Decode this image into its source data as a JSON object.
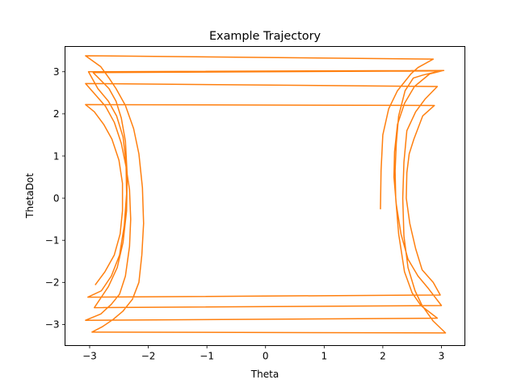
{
  "chart_data": {
    "type": "line",
    "title": "Example Trajectory",
    "xlabel": "Theta",
    "ylabel": "ThetaDot",
    "xlim": [
      -3.42,
      3.4
    ],
    "ylim": [
      -3.5,
      3.6
    ],
    "xticks": [
      -3,
      -2,
      -1,
      0,
      1,
      2,
      3
    ],
    "xtick_labels": [
      "−3",
      "−2",
      "−1",
      "0",
      "1",
      "2",
      "3"
    ],
    "yticks": [
      -3,
      -2,
      -1,
      0,
      1,
      2,
      3
    ],
    "ytick_labels": [
      "−3",
      "−2",
      "−1",
      "0",
      "1",
      "2",
      "3"
    ],
    "grid": false,
    "legend": "none",
    "series": [
      {
        "color": "#ff7f0e",
        "x": [
          1.96,
          1.97,
          2.0,
          2.1,
          2.25,
          2.48,
          2.6,
          2.86,
          -3.07,
          -2.81,
          -2.67,
          -2.55,
          -2.39,
          -2.25,
          -2.16,
          -2.1,
          -2.08,
          -2.11,
          -2.16,
          -2.27,
          -2.43,
          -2.6,
          -2.78,
          -2.96,
          3.07,
          2.86,
          2.67,
          2.55,
          2.43,
          2.36,
          2.34,
          2.36,
          2.41,
          2.56,
          2.72,
          2.93,
          -3.07,
          -2.9,
          -2.73,
          -2.58,
          -2.46,
          -2.38,
          -2.32,
          -2.3,
          -2.32,
          -2.39,
          -2.49,
          -2.63,
          -2.81,
          -3.07,
          2.93,
          2.65,
          2.5,
          2.37,
          2.27,
          2.22,
          2.21,
          2.23,
          2.27,
          2.38,
          2.52,
          2.68,
          2.98,
          -2.94,
          -2.67,
          -2.55,
          -2.46,
          -2.39,
          -2.36,
          -2.37,
          -2.43,
          -2.53,
          -2.68,
          -2.92,
          3.0,
          2.78,
          2.6,
          2.43,
          2.31,
          2.23,
          2.19,
          2.2,
          2.25,
          2.37,
          2.54,
          2.8,
          3.04,
          -3.02,
          -2.86,
          -2.68,
          -2.54,
          -2.43,
          -2.38,
          -2.37,
          -2.41,
          -2.49,
          -2.63,
          -2.8,
          -3.03,
          2.98,
          2.86,
          2.67,
          2.56,
          2.46,
          2.4,
          2.41,
          2.45,
          2.53,
          2.68,
          2.88,
          -3.07,
          -2.92,
          -2.76,
          -2.62,
          -2.5,
          -2.44,
          -2.44,
          -2.48,
          -2.58,
          -2.74,
          -2.9
        ],
        "y": [
          -0.25,
          0.65,
          1.5,
          2.12,
          2.55,
          2.95,
          3.1,
          3.3,
          3.38,
          3.12,
          2.85,
          2.6,
          2.2,
          1.65,
          1.05,
          0.25,
          -0.6,
          -1.35,
          -2.0,
          -2.4,
          -2.68,
          -2.88,
          -3.05,
          -3.18,
          -3.2,
          -2.92,
          -2.55,
          -2.2,
          -1.65,
          -0.9,
          0.0,
          0.85,
          1.6,
          2.05,
          2.35,
          2.65,
          2.72,
          2.45,
          2.18,
          1.8,
          1.3,
          0.75,
          0.2,
          -0.5,
          -1.15,
          -1.85,
          -2.28,
          -2.52,
          -2.75,
          -2.9,
          -2.85,
          -2.55,
          -2.25,
          -1.75,
          -0.85,
          0.0,
          0.65,
          1.3,
          1.95,
          2.55,
          2.85,
          2.92,
          3.02,
          2.98,
          2.6,
          2.3,
          1.9,
          1.35,
          0.55,
          -0.3,
          -1.05,
          -1.65,
          -2.1,
          -2.6,
          -2.55,
          -2.15,
          -1.85,
          -1.45,
          -0.85,
          -0.15,
          0.5,
          1.1,
          1.75,
          2.25,
          2.65,
          2.95,
          3.03,
          3.0,
          2.6,
          2.3,
          1.95,
          1.45,
          0.85,
          0.1,
          -0.65,
          -1.35,
          -1.85,
          -2.2,
          -2.35,
          -2.3,
          -2.0,
          -1.7,
          -1.2,
          -0.6,
          0.0,
          0.6,
          1.05,
          1.4,
          1.95,
          2.2,
          2.22,
          2.05,
          1.75,
          1.4,
          0.9,
          0.35,
          -0.3,
          -0.85,
          -1.35,
          -1.75,
          -2.05
        ]
      }
    ]
  }
}
